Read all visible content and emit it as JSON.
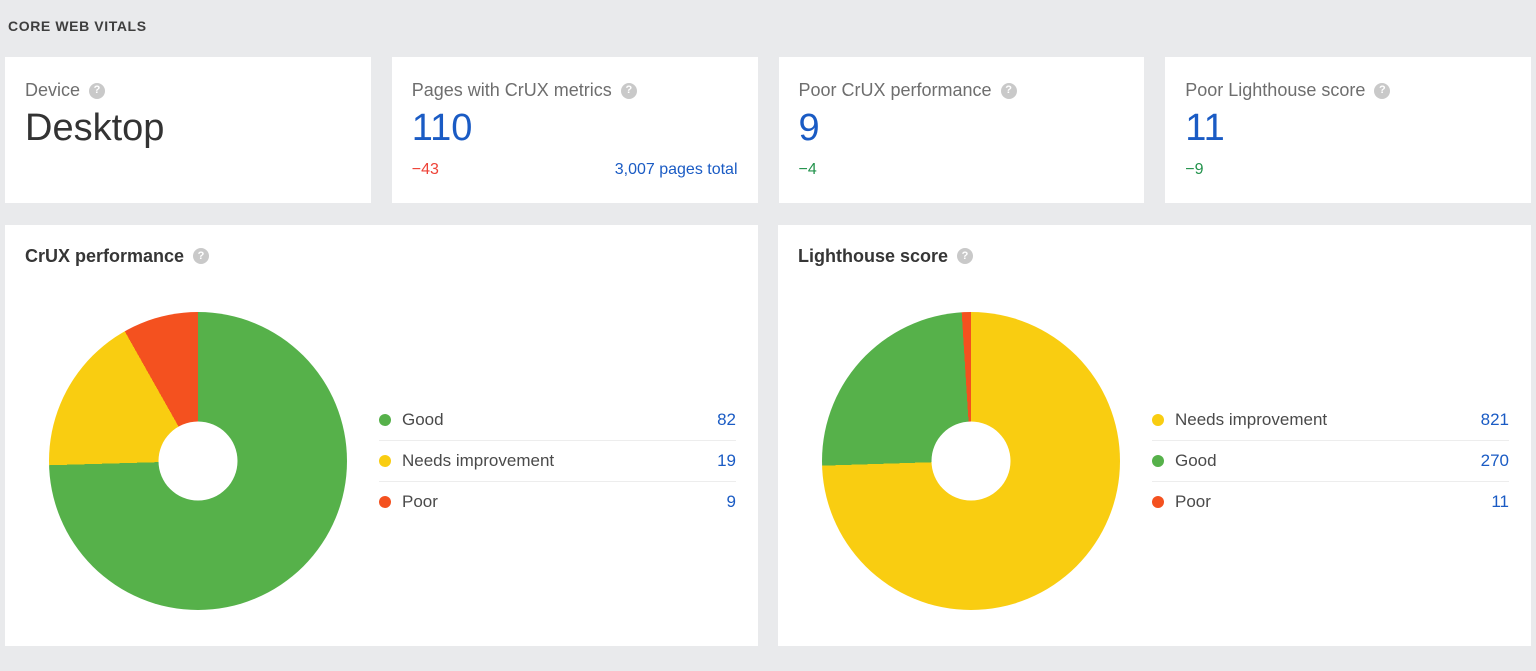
{
  "section": {
    "title": "CORE WEB VITALS"
  },
  "icons": {
    "help": "?"
  },
  "colors": {
    "good": "#56b14a",
    "needs_improvement": "#f9cd11",
    "poor": "#f4511f",
    "link_blue": "#1a5bc4",
    "delta_red": "#ee4237",
    "delta_green": "#23934c"
  },
  "cards": [
    {
      "label": "Device",
      "value": "Desktop"
    },
    {
      "label": "Pages with CrUX metrics",
      "value": "110",
      "delta": "−43",
      "extra_link": "3,007 pages total"
    },
    {
      "label": "Poor CrUX performance",
      "value": "9",
      "delta": "−4"
    },
    {
      "label": "Poor Lighthouse score",
      "value": "11",
      "delta": "−9"
    }
  ],
  "chart_data": [
    {
      "type": "pie",
      "donut": true,
      "title": "CrUX performance",
      "legend_position": "right",
      "start_angle": 0,
      "direction": "clockwise",
      "total": 110,
      "series": [
        {
          "name": "Good",
          "value": 82,
          "color": "#56b14a"
        },
        {
          "name": "Needs improvement",
          "value": 19,
          "color": "#f9cd11"
        },
        {
          "name": "Poor",
          "value": 9,
          "color": "#f4511f"
        }
      ]
    },
    {
      "type": "pie",
      "donut": true,
      "title": "Lighthouse score",
      "legend_position": "right",
      "start_angle": 0,
      "direction": "clockwise",
      "total": 1102,
      "series": [
        {
          "name": "Needs improvement",
          "value": 821,
          "color": "#f9cd11"
        },
        {
          "name": "Good",
          "value": 270,
          "color": "#56b14a"
        },
        {
          "name": "Poor",
          "value": 11,
          "color": "#f4511f"
        }
      ]
    }
  ]
}
